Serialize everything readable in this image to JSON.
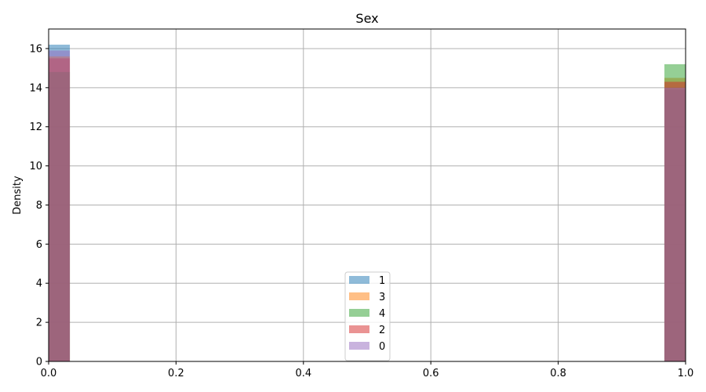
{
  "chart_data": {
    "type": "bar",
    "title": "Sex",
    "xlabel": "",
    "ylabel": "Density",
    "xlim": [
      0,
      1
    ],
    "ylim": [
      0,
      17
    ],
    "xticks": [
      "0.0",
      "0.2",
      "0.4",
      "0.6",
      "0.8",
      "1.0"
    ],
    "yticks": [
      "0",
      "2",
      "4",
      "6",
      "8",
      "10",
      "12",
      "14",
      "16"
    ],
    "grid": true,
    "legend_position": "bottom-center",
    "bin_width": 0.0333,
    "series": [
      {
        "name": "1",
        "color": "#1f77b4",
        "x": [
          0.0,
          1.0
        ],
        "values": [
          16.2,
          13.9
        ]
      },
      {
        "name": "3",
        "color": "#ff7f0e",
        "x": [
          0.0,
          1.0
        ],
        "values": [
          15.6,
          14.5
        ]
      },
      {
        "name": "4",
        "color": "#2ca02c",
        "x": [
          0.0,
          1.0
        ],
        "values": [
          14.8,
          15.2
        ]
      },
      {
        "name": "2",
        "color": "#d62728",
        "x": [
          0.0,
          1.0
        ],
        "values": [
          15.5,
          14.3
        ]
      },
      {
        "name": "0",
        "color": "#9467bd",
        "x": [
          0.0,
          1.0
        ],
        "values": [
          15.9,
          14.0
        ]
      }
    ]
  }
}
